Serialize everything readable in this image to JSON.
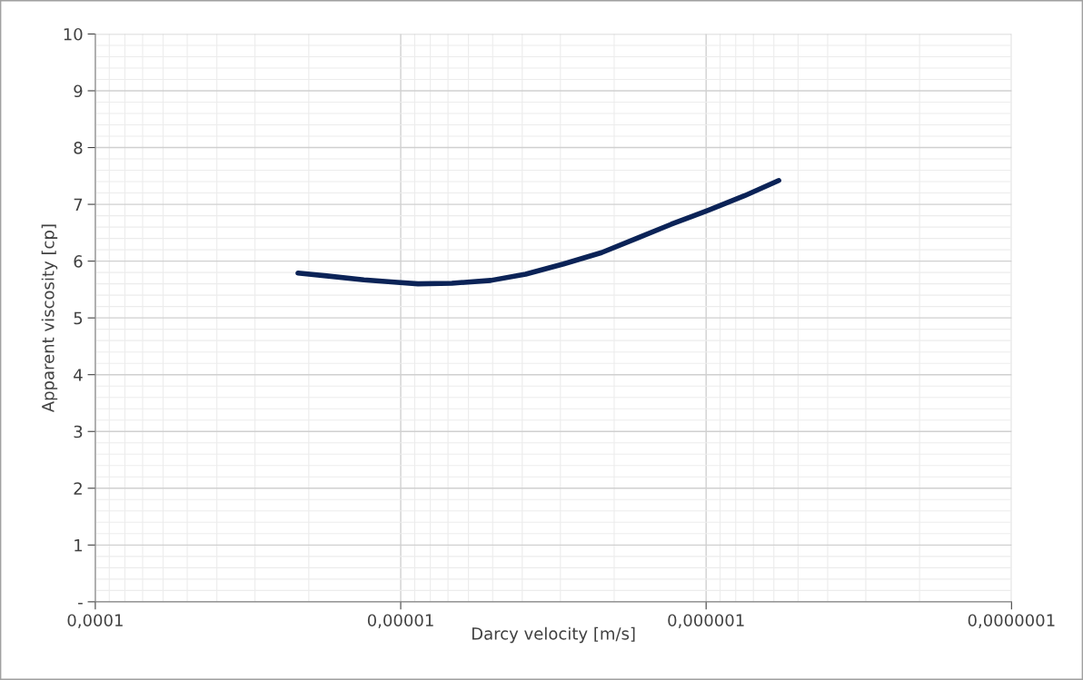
{
  "chart_data": {
    "type": "line",
    "xlabel": "Darcy velocity [m/s]",
    "ylabel": "Apparent viscosity [cp]",
    "log": "x",
    "xlim": [
      0.0001,
      1e-07
    ],
    "xticks": [
      {
        "value": 0.0001,
        "label": "0,0001"
      },
      {
        "value": 1e-05,
        "label": "0,00001"
      },
      {
        "value": 1e-06,
        "label": "0,000001"
      },
      {
        "value": 1e-07,
        "label": "0,0000001"
      }
    ],
    "ylim": [
      0,
      10
    ],
    "yticks": [
      {
        "value": 0,
        "label": "-"
      },
      1,
      2,
      3,
      4,
      5,
      6,
      7,
      8,
      9,
      10
    ],
    "grid": true,
    "marker": "none",
    "line_style": "solid",
    "series": [
      {
        "color": "#0b2357",
        "x": [
          2.17e-05,
          1.75e-05,
          1.32e-05,
          1.05e-05,
          8.78e-06,
          6.8e-06,
          5.07e-06,
          3.9e-06,
          2.93e-06,
          2.2e-06,
          1.69e-06,
          1.3e-06,
          9.8e-07,
          7.5e-07,
          5.78e-07
        ],
        "values": [
          5.79,
          5.74,
          5.67,
          5.63,
          5.6,
          5.61,
          5.66,
          5.77,
          5.95,
          6.15,
          6.4,
          6.65,
          6.9,
          7.15,
          7.42
        ]
      }
    ]
  }
}
